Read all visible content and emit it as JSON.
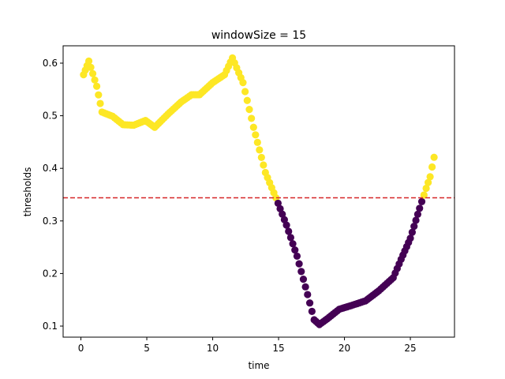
{
  "chart_data": {
    "type": "scatter",
    "title": "windowSize = 15",
    "xlabel": "time",
    "ylabel": "thresholds",
    "xlim": [
      -1.35,
      28.35
    ],
    "ylim": [
      0.079,
      0.633
    ],
    "xticks": [
      0,
      5,
      10,
      15,
      20,
      25
    ],
    "yticks": [
      0.1,
      0.2,
      0.3,
      0.4,
      0.5,
      0.6
    ],
    "ytick_labels": [
      "0.1",
      "0.2",
      "0.3",
      "0.4",
      "0.5",
      "0.6"
    ],
    "threshold_line": {
      "y": 0.344,
      "color": "#d62728",
      "style": "dashed"
    },
    "colors": {
      "above": "#fde725",
      "below": "#440154"
    },
    "grid": false,
    "legend": "none",
    "key_points": [
      {
        "x": 0.2,
        "y": 0.578
      },
      {
        "x": 0.6,
        "y": 0.604
      },
      {
        "x": 1.2,
        "y": 0.556
      },
      {
        "x": 1.6,
        "y": 0.507
      },
      {
        "x": 2.4,
        "y": 0.499
      },
      {
        "x": 3.2,
        "y": 0.483
      },
      {
        "x": 4.0,
        "y": 0.482
      },
      {
        "x": 4.9,
        "y": 0.491
      },
      {
        "x": 5.6,
        "y": 0.478
      },
      {
        "x": 6.6,
        "y": 0.503
      },
      {
        "x": 7.6,
        "y": 0.526
      },
      {
        "x": 8.4,
        "y": 0.54
      },
      {
        "x": 9.0,
        "y": 0.54
      },
      {
        "x": 10.0,
        "y": 0.563
      },
      {
        "x": 10.9,
        "y": 0.578
      },
      {
        "x": 11.5,
        "y": 0.61
      },
      {
        "x": 12.3,
        "y": 0.563
      },
      {
        "x": 13.1,
        "y": 0.478
      },
      {
        "x": 14.0,
        "y": 0.392
      },
      {
        "x": 14.8,
        "y": 0.344
      },
      {
        "x": 15.6,
        "y": 0.292
      },
      {
        "x": 16.4,
        "y": 0.233
      },
      {
        "x": 17.2,
        "y": 0.16
      },
      {
        "x": 17.7,
        "y": 0.112
      },
      {
        "x": 18.1,
        "y": 0.103
      },
      {
        "x": 18.7,
        "y": 0.114
      },
      {
        "x": 19.6,
        "y": 0.132
      },
      {
        "x": 20.5,
        "y": 0.139
      },
      {
        "x": 21.6,
        "y": 0.148
      },
      {
        "x": 22.6,
        "y": 0.167
      },
      {
        "x": 23.7,
        "y": 0.192
      },
      {
        "x": 24.3,
        "y": 0.227
      },
      {
        "x": 25.0,
        "y": 0.267
      },
      {
        "x": 25.7,
        "y": 0.324
      },
      {
        "x": 26.2,
        "y": 0.362
      },
      {
        "x": 26.5,
        "y": 0.384
      },
      {
        "x": 26.8,
        "y": 0.421
      }
    ]
  }
}
